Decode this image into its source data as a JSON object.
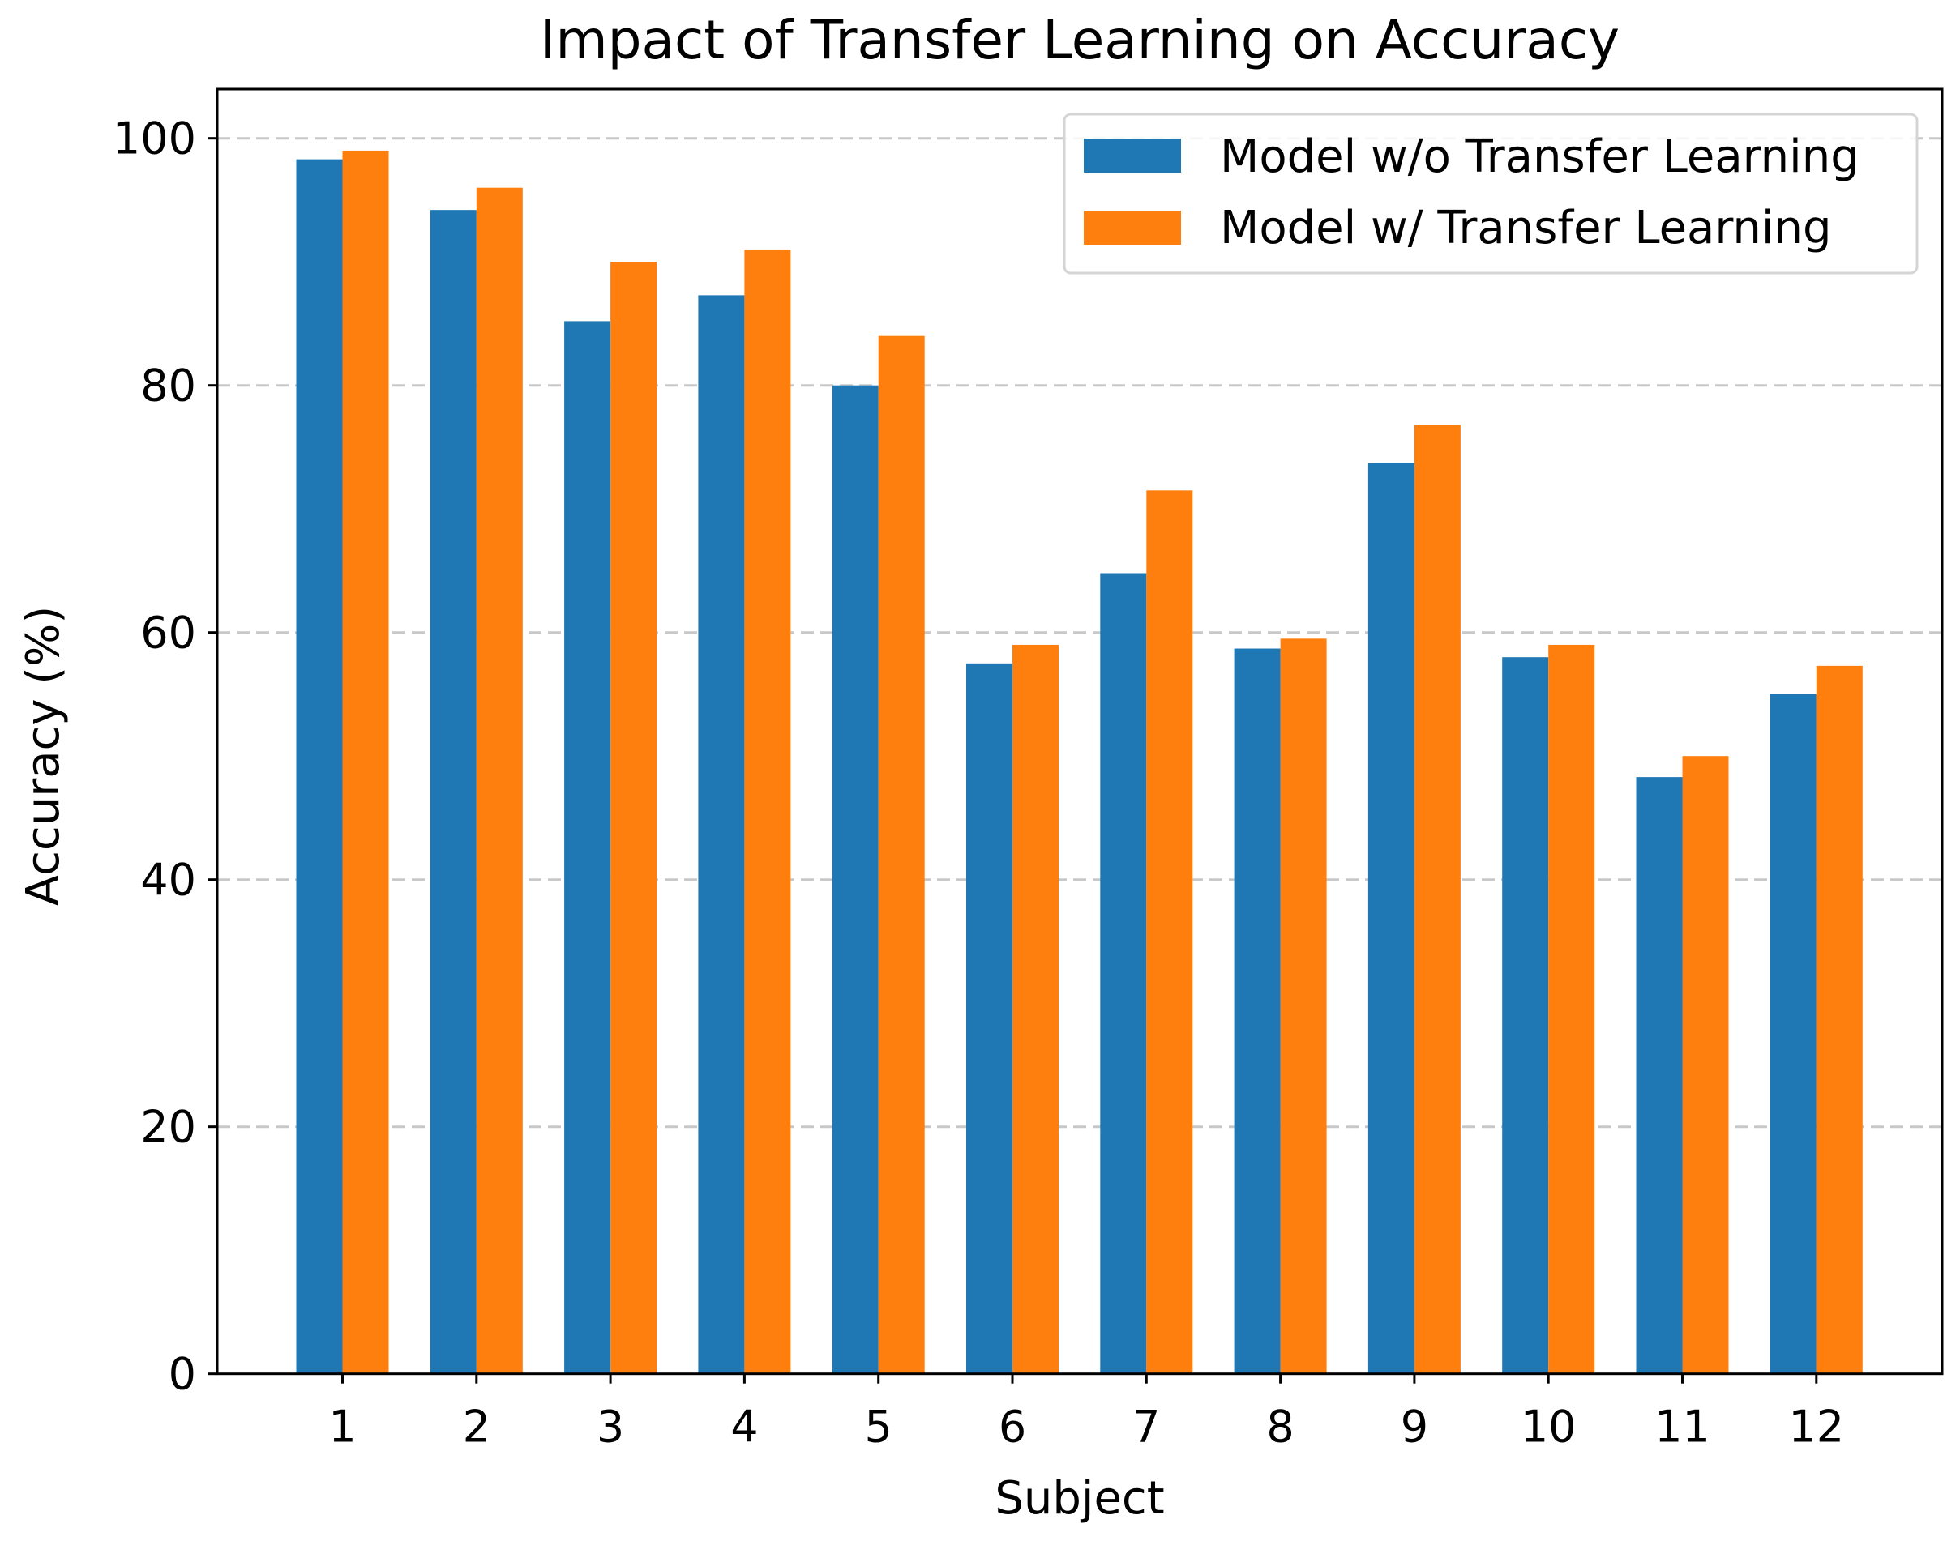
{
  "chart_data": {
    "type": "bar",
    "title": "Impact of Transfer Learning on Accuracy",
    "xlabel": "Subject",
    "ylabel": "Accuracy (%)",
    "categories": [
      "1",
      "2",
      "3",
      "4",
      "5",
      "6",
      "7",
      "8",
      "9",
      "10",
      "11",
      "12"
    ],
    "series": [
      {
        "name": "Model w/o Transfer Learning",
        "color": "#1f77b4",
        "values": [
          98.3,
          94.2,
          85.2,
          87.3,
          80.0,
          57.5,
          64.8,
          58.7,
          73.7,
          58.0,
          48.3,
          55.0
        ]
      },
      {
        "name": "Model w/ Transfer Learning",
        "color": "#ff7f0e",
        "values": [
          99.0,
          96.0,
          90.0,
          91.0,
          84.0,
          59.0,
          71.5,
          59.5,
          76.8,
          59.0,
          50.0,
          57.3
        ]
      }
    ],
    "ylim": [
      0,
      104
    ],
    "yticks": [
      0,
      20,
      40,
      60,
      80,
      100
    ],
    "grid": {
      "axis": "y",
      "style": "dashed",
      "color": "#c8c8c8"
    },
    "legend_position": "upper right"
  }
}
